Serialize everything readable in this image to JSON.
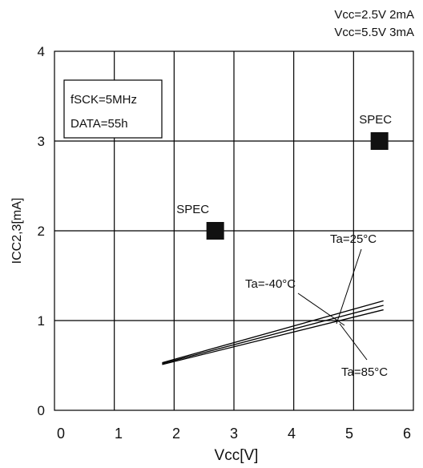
{
  "chart_data": {
    "type": "line",
    "xlabel": "Vcc[V]",
    "ylabel": "ICC2,3[mA]",
    "xlim": [
      0,
      6
    ],
    "ylim": [
      0,
      4
    ],
    "x_ticks": [
      "0",
      "1",
      "2",
      "3",
      "4",
      "5",
      "6"
    ],
    "y_ticks": [
      "0",
      "1",
      "2",
      "3",
      "4"
    ],
    "grid": true,
    "conditions": [
      "fSCK=5MHz",
      "DATA=55h"
    ],
    "spec_notes": [
      "Vcc=2.5V 2mA",
      "Vcc=5.5V 3mA"
    ],
    "series": [
      {
        "name": "Ta=-40°C",
        "x": [
          1.8,
          5.5
        ],
        "y": [
          0.53,
          1.22
        ]
      },
      {
        "name": "Ta=25°C",
        "x": [
          1.8,
          5.5
        ],
        "y": [
          0.52,
          1.17
        ]
      },
      {
        "name": "Ta=85°C",
        "x": [
          1.8,
          5.5
        ],
        "y": [
          0.51,
          1.12
        ]
      }
    ],
    "spec_points": [
      {
        "label": "SPEC",
        "x": 2.5,
        "y": 2
      },
      {
        "label": "SPEC",
        "x": 5.5,
        "y": 3
      }
    ]
  }
}
